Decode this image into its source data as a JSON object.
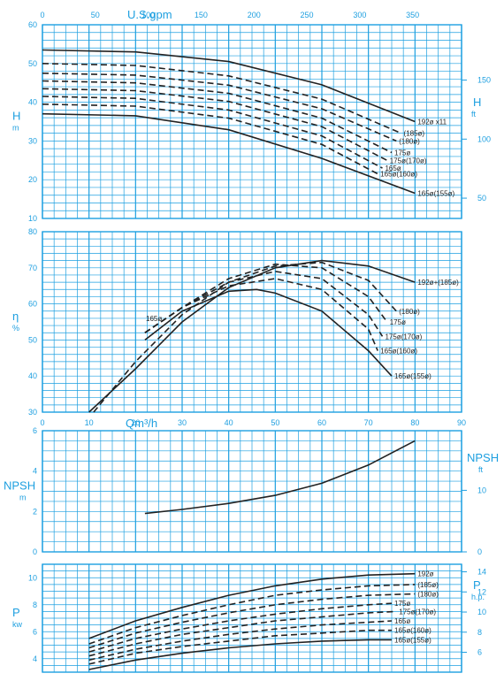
{
  "colors": {
    "grid": "#1d9fe0",
    "curve": "#222222",
    "label": "#1d9fe0",
    "background": "#ffffff"
  },
  "top_axis": {
    "title": "U.S.gpm",
    "ticks": [
      "0",
      "50",
      "100",
      "150",
      "200",
      "250",
      "300",
      "350"
    ],
    "values": [
      0,
      50,
      100,
      150,
      200,
      250,
      300,
      350
    ]
  },
  "mid_axis": {
    "title": "Qm³/h",
    "ticks": [
      "0",
      "10",
      "20",
      "30",
      "40",
      "50",
      "60",
      "70",
      "80",
      "90"
    ],
    "values": [
      0,
      10,
      20,
      30,
      40,
      50,
      60,
      70,
      80,
      90
    ]
  },
  "chart_data": [
    {
      "type": "line",
      "name": "head",
      "xlim": [
        0,
        90
      ],
      "ylim": [
        10,
        60
      ],
      "y_ticks": [
        "10",
        "20",
        "30",
        "40",
        "50",
        "60"
      ],
      "y_tick_values": [
        10,
        20,
        30,
        40,
        50,
        60
      ],
      "ylabel_left": [
        "H",
        "m"
      ],
      "ylabel_right": [
        "H",
        "ft"
      ],
      "right_ticks": [
        "50",
        "100",
        "150"
      ],
      "right_tick_values": [
        50,
        100,
        150
      ],
      "right_unit_factor": 3.2808,
      "series": [
        {
          "label": "192ø x11",
          "dash": false,
          "x": [
            0,
            20,
            40,
            60,
            80
          ],
          "y": [
            53.5,
            53,
            50.5,
            44.5,
            35
          ]
        },
        {
          "label": "(185ø)",
          "dash": true,
          "x": [
            0,
            20,
            40,
            60,
            77
          ],
          "y": [
            50,
            49.5,
            46.8,
            40.8,
            32
          ]
        },
        {
          "label": "(180ø)",
          "dash": true,
          "x": [
            0,
            20,
            40,
            60,
            76
          ],
          "y": [
            47.5,
            47,
            44.4,
            38.3,
            30
          ]
        },
        {
          "label": "175ø",
          "dash": true,
          "x": [
            0,
            20,
            40,
            60,
            75
          ],
          "y": [
            45.5,
            45,
            42.3,
            35.9,
            27
          ]
        },
        {
          "label": "175ø(170ø)",
          "dash": true,
          "x": [
            0,
            20,
            40,
            60,
            74
          ],
          "y": [
            43.5,
            43,
            40.2,
            33.7,
            25
          ]
        },
        {
          "label": "165ø",
          "dash": true,
          "x": [
            0,
            20,
            40,
            60,
            73
          ],
          "y": [
            41.5,
            41,
            38,
            31.3,
            23
          ]
        },
        {
          "label": "165ø(160ø)",
          "dash": true,
          "x": [
            0,
            20,
            40,
            60,
            72
          ],
          "y": [
            39.5,
            39,
            35.9,
            29.1,
            21.5
          ]
        },
        {
          "label": "165ø(155ø)",
          "dash": false,
          "x": [
            0,
            20,
            40,
            60,
            80
          ],
          "y": [
            37,
            36.5,
            32.9,
            25.5,
            16.5
          ]
        }
      ]
    },
    {
      "type": "line",
      "name": "efficiency",
      "xlim": [
        0,
        90
      ],
      "ylim": [
        30,
        80
      ],
      "y_ticks": [
        "30",
        "40",
        "50",
        "60",
        "70",
        "80"
      ],
      "y_tick_values": [
        30,
        40,
        50,
        60,
        70,
        80
      ],
      "ylabel_left": [
        "η",
        "%"
      ],
      "series": [
        {
          "label": "192ø+(185ø)",
          "dash": false,
          "x": [
            10,
            20,
            30,
            40,
            50,
            60,
            70,
            80
          ],
          "y": [
            30,
            42,
            55,
            64.5,
            70,
            72,
            70.5,
            66
          ]
        },
        {
          "label": "(180ø)",
          "dash": true,
          "x": [
            11,
            20,
            30,
            40,
            50,
            60,
            70,
            76
          ],
          "y": [
            30,
            44,
            57,
            66,
            70.5,
            71.5,
            66.5,
            58
          ]
        },
        {
          "label": "175ø",
          "dash": true,
          "x": [
            22,
            30,
            40,
            50,
            60,
            70,
            74
          ],
          "y": [
            52,
            59,
            67,
            71,
            70,
            62,
            55
          ]
        },
        {
          "label": "175ø(170ø)",
          "dash": true,
          "x": [
            22,
            30,
            40,
            50,
            60,
            70,
            73
          ],
          "y": [
            52,
            59,
            66,
            69,
            67,
            57,
            51
          ]
        },
        {
          "label": "165ø(160ø)",
          "dash": true,
          "x": [
            22,
            30,
            40,
            50,
            60,
            70,
            72
          ],
          "y": [
            52,
            59,
            65,
            67,
            64,
            53,
            47
          ]
        },
        {
          "label": "165ø(155ø)",
          "dash": false,
          "x": [
            22,
            30,
            40,
            46,
            50,
            60,
            70,
            75
          ],
          "y": [
            50,
            58,
            63.5,
            64,
            63,
            58,
            47,
            40
          ]
        }
      ],
      "annotation": "165ø"
    },
    {
      "type": "line",
      "name": "npsh",
      "xlim": [
        0,
        90
      ],
      "ylim": [
        0,
        6
      ],
      "y_ticks": [
        "0",
        "2",
        "4",
        "6"
      ],
      "y_tick_values": [
        0,
        2,
        4,
        6
      ],
      "ylabel_left": [
        "NPSH",
        "m"
      ],
      "ylabel_right": [
        "NPSH",
        "ft"
      ],
      "right_ticks": [
        "0",
        "10"
      ],
      "right_tick_values": [
        0,
        10
      ],
      "right_unit_factor": 3.2808,
      "series": [
        {
          "label": "",
          "dash": false,
          "x": [
            22,
            30,
            40,
            50,
            60,
            70,
            80
          ],
          "y": [
            1.9,
            2.1,
            2.4,
            2.8,
            3.4,
            4.3,
            5.5
          ]
        }
      ]
    },
    {
      "type": "line",
      "name": "power",
      "xlim": [
        0,
        90
      ],
      "ylim": [
        3,
        11
      ],
      "y_ticks": [
        "4",
        "6",
        "8",
        "10"
      ],
      "y_tick_values": [
        4,
        6,
        8,
        10
      ],
      "ylabel_left": [
        "P",
        "kw"
      ],
      "ylabel_right": [
        "P",
        "h.p."
      ],
      "right_ticks": [
        "6",
        "8",
        "10",
        "12",
        "14"
      ],
      "right_tick_values": [
        6,
        8,
        10,
        12,
        14
      ],
      "right_unit_factor": 1.341,
      "series": [
        {
          "label": "192ø",
          "dash": false,
          "x": [
            10,
            20,
            30,
            40,
            50,
            60,
            70,
            80
          ],
          "y": [
            5.5,
            6.8,
            7.8,
            8.7,
            9.4,
            9.9,
            10.2,
            10.3
          ]
        },
        {
          "label": "(185ø)",
          "dash": true,
          "x": [
            10,
            20,
            30,
            40,
            50,
            60,
            70,
            80
          ],
          "y": [
            5.1,
            6.3,
            7.2,
            8.0,
            8.7,
            9.1,
            9.4,
            9.5
          ]
        },
        {
          "label": "(180ø)",
          "dash": true,
          "x": [
            10,
            20,
            30,
            40,
            50,
            60,
            70,
            80
          ],
          "y": [
            4.8,
            5.9,
            6.7,
            7.4,
            8.0,
            8.4,
            8.7,
            8.8
          ]
        },
        {
          "label": "175ø",
          "dash": true,
          "x": [
            10,
            20,
            30,
            40,
            50,
            60,
            70,
            75
          ],
          "y": [
            4.5,
            5.5,
            6.2,
            6.8,
            7.3,
            7.7,
            8.0,
            8.1
          ]
        },
        {
          "label": "175ø(170ø)",
          "dash": true,
          "x": [
            10,
            20,
            30,
            40,
            50,
            60,
            70,
            76
          ],
          "y": [
            4.2,
            5.1,
            5.8,
            6.3,
            6.8,
            7.1,
            7.4,
            7.5
          ]
        },
        {
          "label": "165ø",
          "dash": true,
          "x": [
            10,
            20,
            30,
            40,
            50,
            60,
            70,
            75
          ],
          "y": [
            3.9,
            4.7,
            5.3,
            5.8,
            6.2,
            6.5,
            6.7,
            6.8
          ]
        },
        {
          "label": "165ø(160ø)",
          "dash": true,
          "x": [
            10,
            20,
            30,
            40,
            50,
            60,
            70,
            75
          ],
          "y": [
            3.6,
            4.4,
            4.9,
            5.3,
            5.7,
            5.9,
            6.1,
            6.1
          ]
        },
        {
          "label": "165ø(155ø)",
          "dash": false,
          "x": [
            10,
            20,
            30,
            40,
            50,
            60,
            70,
            75
          ],
          "y": [
            3.2,
            3.9,
            4.4,
            4.8,
            5.1,
            5.3,
            5.4,
            5.4
          ]
        }
      ]
    }
  ]
}
